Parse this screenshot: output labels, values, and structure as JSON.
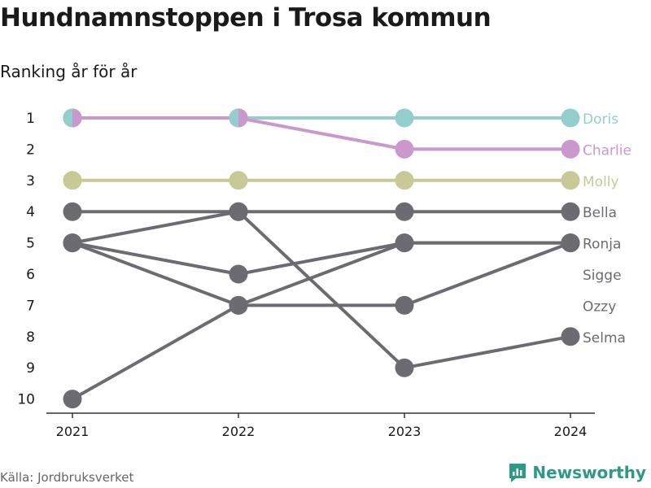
{
  "title": "Hundnamnstoppen i Trosa kommun",
  "subtitle": "Ranking år för år",
  "source": "Källa: Jordbruksverket",
  "brand": {
    "name": "Newsworthy",
    "icon": "bar-chart-logo-icon",
    "color": "#2e9a86"
  },
  "chart_data": {
    "type": "line",
    "title": "Hundnamnstoppen i Trosa kommun",
    "subtitle": "Ranking år för år",
    "xlabel": "",
    "ylabel": "",
    "x": [
      "2021",
      "2022",
      "2023",
      "2024"
    ],
    "yticks": [
      "1",
      "2",
      "3",
      "4",
      "5",
      "6",
      "7",
      "8",
      "9",
      "10"
    ],
    "ylim": [
      1,
      10
    ],
    "y_reversed": true,
    "grid": false,
    "series": [
      {
        "name": "Doris",
        "values": [
          1,
          1,
          1,
          1
        ],
        "color": "#93cecc",
        "label_color": "#93cecc"
      },
      {
        "name": "Charlie",
        "values": [
          1,
          1,
          2,
          2
        ],
        "color": "#c998cc",
        "label_color": "#c998cc"
      },
      {
        "name": "Molly",
        "values": [
          3,
          3,
          3,
          3
        ],
        "color": "#c7c996",
        "label_color": "#c7c996"
      },
      {
        "name": "Bella",
        "values": [
          4,
          4,
          4,
          4
        ],
        "color": "#6c6b72",
        "label_color": "#6c6b72"
      },
      {
        "name": "Ronja",
        "values": [
          5,
          7,
          7,
          5
        ],
        "color": "#6c6b72",
        "label_color": "#6c6b72"
      },
      {
        "name": "Sigge",
        "values": [
          5,
          6,
          5,
          5
        ],
        "color": "#6c6b72",
        "label_color": "#6c6b72"
      },
      {
        "name": "Ozzy",
        "values": [
          10,
          7,
          5,
          5
        ],
        "color": "#6c6b72",
        "label_color": "#6c6b72"
      },
      {
        "name": "Selma",
        "values": [
          5,
          4,
          9,
          8
        ],
        "color": "#6c6b72",
        "label_color": "#6c6b72"
      }
    ],
    "end_labels": [
      {
        "name": "Doris",
        "rank": 1,
        "color": "#93cecc"
      },
      {
        "name": "Charlie",
        "rank": 2,
        "color": "#c998cc"
      },
      {
        "name": "Molly",
        "rank": 3,
        "color": "#c7c996"
      },
      {
        "name": "Bella",
        "rank": 4,
        "color": "#6c6b72"
      },
      {
        "name": "Ronja",
        "rank": 5,
        "color": "#6c6b72"
      },
      {
        "name": "Sigge",
        "rank": 6,
        "color": "#6c6b72"
      },
      {
        "name": "Ozzy",
        "rank": 7,
        "color": "#6c6b72"
      },
      {
        "name": "Selma",
        "rank": 8,
        "color": "#6c6b72"
      }
    ]
  }
}
